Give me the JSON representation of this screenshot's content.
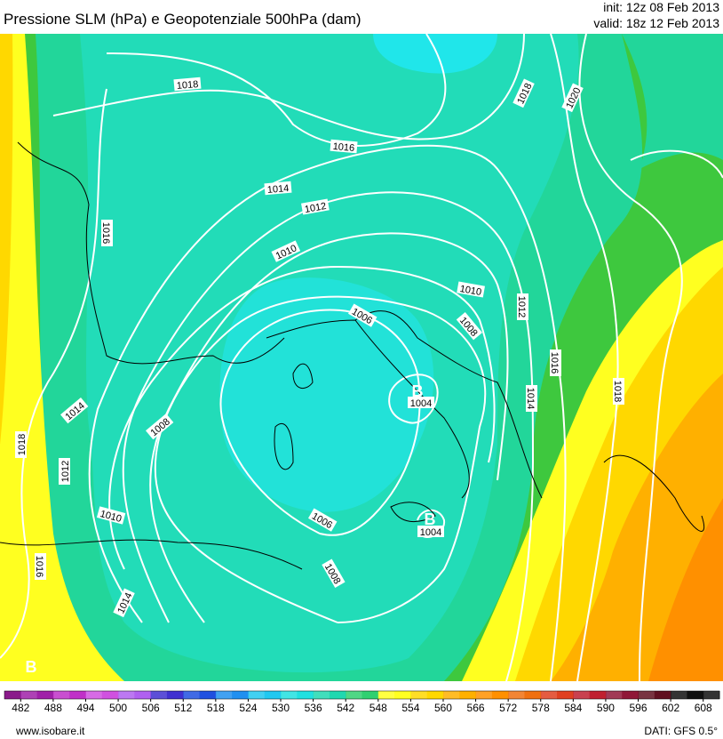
{
  "header": {
    "title": "Pressione SLM (hPa) e Geopotenziale 500hPa (dam)",
    "init": "init: 12z 08 Feb 2013",
    "valid": "valid: 18z 12 Feb 2013"
  },
  "isobar_labels": [
    "1018",
    "1016",
    "1014",
    "1012",
    "1010",
    "1006",
    "1008",
    "1010",
    "1012",
    "1016",
    "1014",
    "1018",
    "1018",
    "1020",
    "1016",
    "1014",
    "1008",
    "1018",
    "1012",
    "1010",
    "1006",
    "1016",
    "1014",
    "1008",
    "1004",
    "1004"
  ],
  "low_labels": [
    "B",
    "B",
    "B"
  ],
  "colorbar": {
    "labels": [
      482,
      488,
      494,
      500,
      506,
      512,
      518,
      524,
      530,
      536,
      542,
      548,
      554,
      560,
      566,
      572,
      578,
      584,
      590,
      596,
      602,
      608
    ],
    "colors": [
      "#8a1a8a",
      "#a020a8",
      "#c030c8",
      "#d050e0",
      "#b060f0",
      "#4030d0",
      "#2050e0",
      "#2090f0",
      "#20c8f0",
      "#20e0e0",
      "#20d8b0",
      "#30d070",
      "#ffff20",
      "#ffd800",
      "#ffb000",
      "#ff9000",
      "#f07010",
      "#e04020",
      "#c02030",
      "#901838",
      "#601020",
      "#101010"
    ]
  },
  "footer": {
    "site": "www.isobare.it",
    "source": "DATI: GFS 0.5°"
  }
}
